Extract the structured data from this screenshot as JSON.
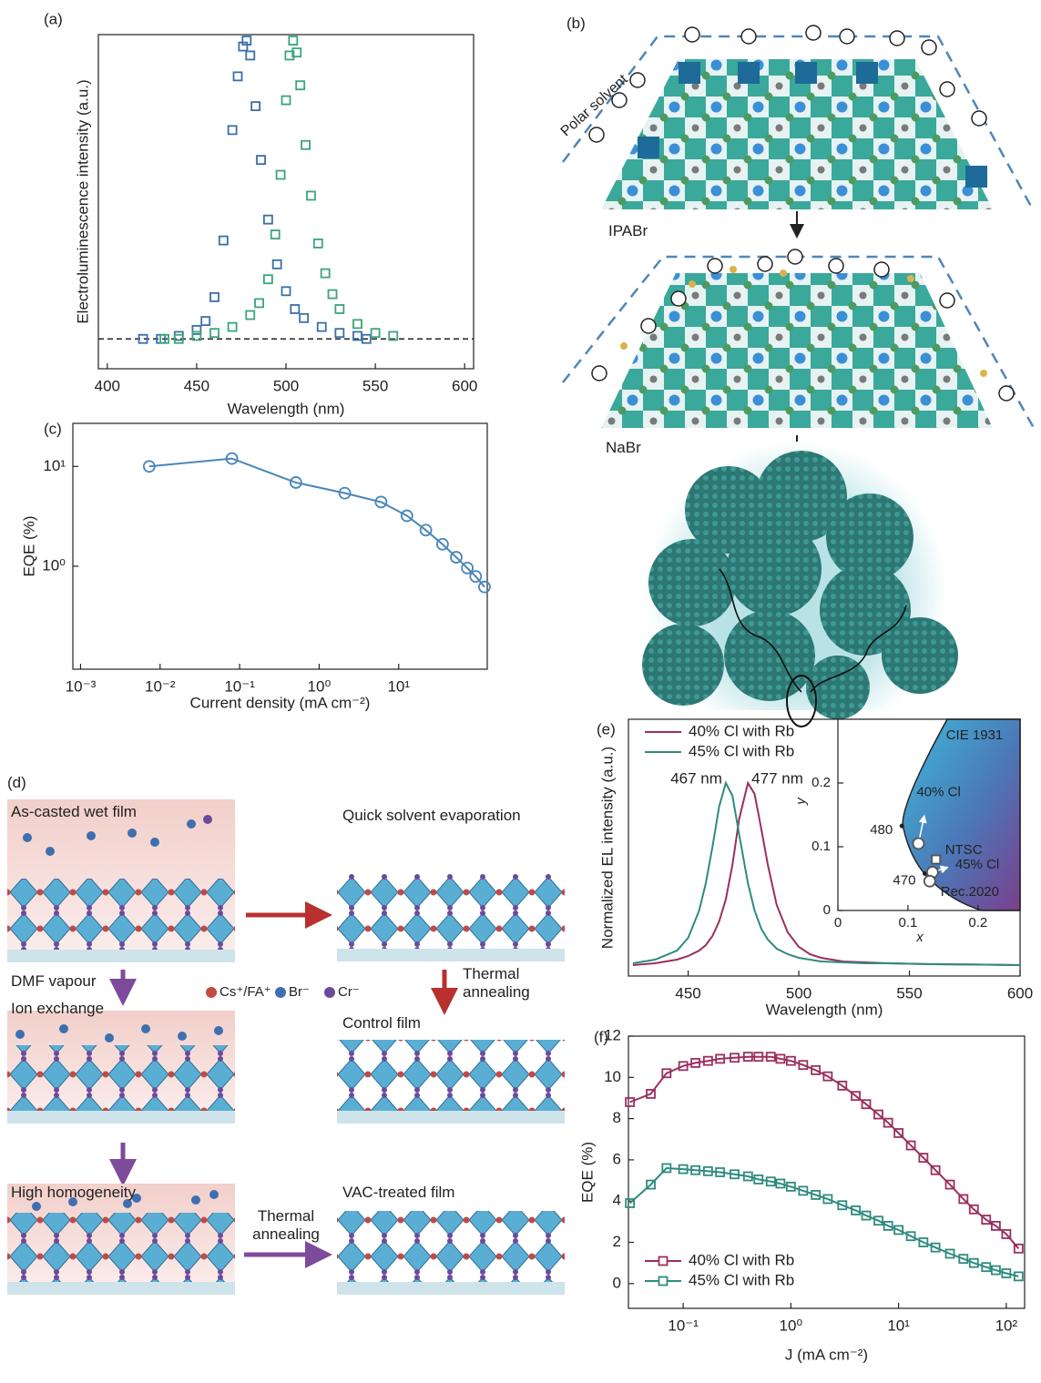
{
  "chart_data": [
    {
      "panel": "(a)",
      "type": "scatter",
      "marker": "square",
      "xlabel": "Wavelength (nm)",
      "ylabel": "Electroluminescence intensity (a.u.)",
      "xlim": [
        395,
        605
      ],
      "ylim": [
        -0.1,
        1.02
      ],
      "xticks": [
        400,
        450,
        500,
        550,
        600
      ],
      "reference_line": 0,
      "series": [
        {
          "color": "#3a6fa6",
          "x": [
            420,
            430,
            440,
            450,
            455,
            460,
            465,
            470,
            473,
            476,
            478,
            480,
            483,
            486,
            490,
            495,
            500,
            505,
            510,
            520,
            530,
            540,
            545
          ],
          "values": [
            0,
            0,
            0.01,
            0.03,
            0.06,
            0.14,
            0.33,
            0.7,
            0.88,
            0.98,
            1.0,
            0.95,
            0.78,
            0.6,
            0.4,
            0.25,
            0.16,
            0.1,
            0.07,
            0.04,
            0.02,
            0.01,
            0
          ]
        },
        {
          "color": "#3aa57a",
          "x": [
            432,
            440,
            450,
            460,
            470,
            480,
            485,
            490,
            494,
            497,
            500,
            502,
            504,
            506,
            508,
            511,
            514,
            518,
            522,
            526,
            530,
            540,
            550,
            560
          ],
          "values": [
            0,
            0,
            0.01,
            0.02,
            0.04,
            0.08,
            0.12,
            0.2,
            0.35,
            0.55,
            0.8,
            0.95,
            1.0,
            0.96,
            0.85,
            0.65,
            0.48,
            0.32,
            0.22,
            0.15,
            0.1,
            0.05,
            0.02,
            0.01
          ]
        }
      ]
    },
    {
      "panel": "(c)",
      "type": "line",
      "marker": "circle",
      "xscale": "log",
      "yscale": "log",
      "xlabel": "Current density (mA cm⁻²)",
      "ylabel": "EQE (%)",
      "xlim": [
        0.0008,
        130
      ],
      "ylim": [
        0.093,
        27
      ],
      "xticks": [
        {
          "value": 0.001,
          "label": "10⁻³"
        },
        {
          "value": 0.01,
          "label": "10⁻²"
        },
        {
          "value": 0.1,
          "label": "10⁻¹"
        },
        {
          "value": 1,
          "label": "10⁰"
        },
        {
          "value": 10,
          "label": "10¹"
        }
      ],
      "yticks": [
        {
          "value": 1,
          "label": "10⁰"
        },
        {
          "value": 10,
          "label": "10¹"
        }
      ],
      "series": [
        {
          "color": "#4a86b8",
          "x": [
            0.0073,
            0.08,
            0.51,
            2.1,
            6,
            12.7,
            22,
            35.6,
            53,
            73,
            93,
            120
          ],
          "values": [
            10,
            12,
            6.9,
            5.4,
            4.4,
            3.2,
            2.3,
            1.66,
            1.23,
            0.96,
            0.79,
            0.62
          ]
        }
      ]
    },
    {
      "panel": "(e)",
      "type": "line",
      "xlabel": "Wavelength (nm)",
      "ylabel": "Normalized EL intensity (a.u.)",
      "xlim": [
        423,
        600
      ],
      "ylim": [
        -0.06,
        1.35
      ],
      "xticks": [
        450,
        500,
        550,
        600
      ],
      "legend": "upper left",
      "x": [
        425,
        435,
        445,
        450,
        455,
        458,
        461,
        464,
        467,
        470,
        473,
        477,
        480,
        483,
        486,
        490,
        495,
        500,
        505,
        510,
        520,
        530,
        540,
        560,
        580,
        600
      ],
      "series": [
        {
          "name": "40% Cl with Rb",
          "color": "#9b2f5e",
          "values": [
            0,
            0.01,
            0.03,
            0.05,
            0.08,
            0.11,
            0.16,
            0.24,
            0.36,
            0.55,
            0.8,
            1.0,
            0.94,
            0.75,
            0.55,
            0.33,
            0.18,
            0.1,
            0.06,
            0.04,
            0.02,
            0.015,
            0.01,
            0.005,
            0.003,
            0
          ]
        },
        {
          "name": "45% Cl with Rb",
          "color": "#2e8b7e",
          "values": [
            0.01,
            0.03,
            0.08,
            0.15,
            0.3,
            0.45,
            0.65,
            0.87,
            1.0,
            0.93,
            0.72,
            0.45,
            0.3,
            0.2,
            0.14,
            0.09,
            0.06,
            0.04,
            0.03,
            0.02,
            0.015,
            0.01,
            0.01,
            0.005,
            0.003,
            0
          ]
        }
      ],
      "annotations": [
        {
          "text": "467 nm",
          "x": 467,
          "color": "#2e8b7e"
        },
        {
          "text": "477 nm",
          "x": 477,
          "color": "#7a2456"
        }
      ]
    },
    {
      "type": "scatter",
      "title": "CIE 1931",
      "xlabel": "x",
      "ylabel": "y",
      "xlim": [
        0,
        0.26
      ],
      "ylim": [
        0,
        0.3
      ],
      "xticks": [
        0,
        0.1,
        0.2
      ],
      "yticks": [
        0,
        0.1,
        0.2
      ],
      "points": [
        {
          "label": "40% Cl",
          "x": 0.115,
          "y": 0.105,
          "marker": "circle"
        },
        {
          "label": "NTSC",
          "x": 0.14,
          "y": 0.08,
          "marker": "square"
        },
        {
          "label": "45% Cl",
          "x": 0.135,
          "y": 0.06,
          "marker": "circle"
        },
        {
          "label": "Rec.2020",
          "x": 0.131,
          "y": 0.046,
          "marker": "circle"
        }
      ],
      "locus_labels": [
        {
          "label": "480",
          "x": 0.0913,
          "y": 0.1327,
          "color": "#4a6cf0"
        },
        {
          "label": "470",
          "x": 0.1241,
          "y": 0.0578,
          "color": "#4a6cf0"
        }
      ]
    },
    {
      "panel": "(f)",
      "type": "line",
      "marker": "square",
      "xscale": "log",
      "xlabel": "J (mA cm⁻²)",
      "ylabel": "EQE (%)",
      "xlim": [
        0.031,
        148
      ],
      "ylim": [
        -1.2,
        12
      ],
      "xticks": [
        {
          "value": 0.1,
          "label": "10⁻¹"
        },
        {
          "value": 1,
          "label": "10⁰"
        },
        {
          "value": 10,
          "label": "10¹"
        },
        {
          "value": 100,
          "label": "10²"
        }
      ],
      "yticks": [
        0,
        2,
        4,
        6,
        8,
        10,
        12
      ],
      "legend": "lower left",
      "x": [
        0.032,
        0.05,
        0.07,
        0.1,
        0.13,
        0.17,
        0.22,
        0.3,
        0.4,
        0.5,
        0.65,
        0.8,
        1,
        1.3,
        1.7,
        2.2,
        3,
        4,
        5,
        6.5,
        8,
        10,
        13,
        17,
        22,
        30,
        40,
        50,
        65,
        80,
        100,
        130
      ],
      "series": [
        {
          "name": "40% Cl with Rb",
          "color": "#9b2f5e",
          "values": [
            8.8,
            9.2,
            10.2,
            10.55,
            10.7,
            10.8,
            10.9,
            10.95,
            11.0,
            11.0,
            11.0,
            10.9,
            10.8,
            10.6,
            10.35,
            10.05,
            9.6,
            9.1,
            8.7,
            8.2,
            7.8,
            7.3,
            6.7,
            6.1,
            5.5,
            4.8,
            4.1,
            3.6,
            3.1,
            2.8,
            2.4,
            1.7
          ]
        },
        {
          "name": "45% Cl with Rb",
          "color": "#2e8b7e",
          "values": [
            3.9,
            4.8,
            5.6,
            5.55,
            5.5,
            5.45,
            5.4,
            5.3,
            5.2,
            5.05,
            4.95,
            4.85,
            4.7,
            4.5,
            4.3,
            4.1,
            3.8,
            3.55,
            3.3,
            3.05,
            2.8,
            2.6,
            2.3,
            2.0,
            1.75,
            1.45,
            1.2,
            1.0,
            0.8,
            0.65,
            0.5,
            0.35
          ]
        }
      ]
    }
  ],
  "diagram_b": {
    "panel": "(b)",
    "polar_solvent": "Polar solvent",
    "step1": "IPABr",
    "step2": "NaBr"
  },
  "diagram_d": {
    "panel": "(d)",
    "labels": [
      "As-casted wet film",
      "Quick solvent evaporation",
      "DMF vapour",
      "Thermal annealing",
      "Ion exchange",
      "Control film",
      "High homogeneity",
      "Thermal annealing",
      "VAC-treated film"
    ],
    "legend": [
      "Cs⁺/FA⁺",
      "Br⁻",
      "Cr⁻"
    ]
  }
}
